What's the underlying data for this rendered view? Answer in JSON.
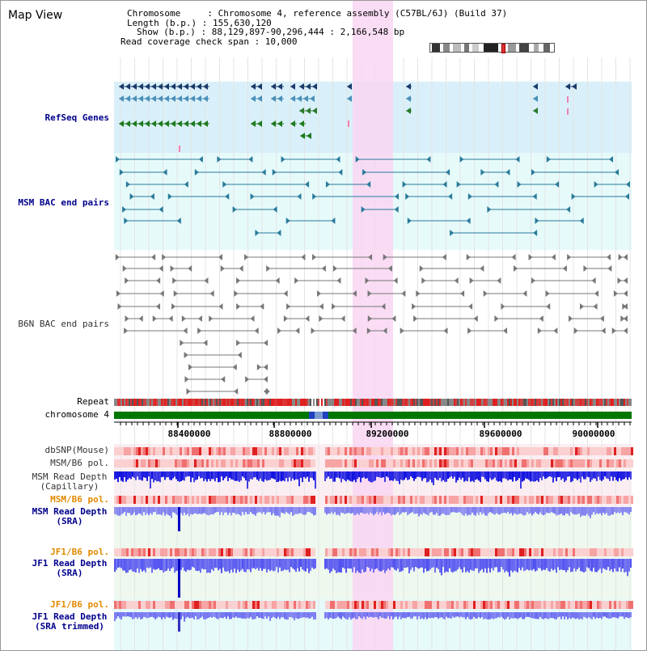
{
  "title": "Map View",
  "info": {
    "line1": "Chromosome     : Chromosome 4, reference assembly (C57BL/6J) (Build 37)",
    "line2": "Length (b.p.) : 155,630,120",
    "line3": "Show (b.p.) : 88,129,897-90,296,444 : 2,166,548 bp",
    "line4": "Read coverage check span : 10,000"
  },
  "tracks": {
    "refseq": "RefSeq Genes",
    "msm_bac": "MSM BAC end pairs",
    "b6n_bac": "B6N BAC end pairs",
    "repeat": "Repeat",
    "chromosome": "chromosome 4",
    "dbsnp": "dbSNP(Mouse)",
    "msm_b6_pol": "MSM/B6 pol.",
    "msm_depth_cap": "MSM Read Depth\n(Capillary)",
    "msm_b6_pol2": "MSM/B6 pol.",
    "msm_depth_sra": "MSM Read Depth\n(SRA)",
    "jf1_b6_pol": "JF1/B6 pol.",
    "jf1_depth_sra": "JF1 Read Depth\n(SRA)",
    "jf1_b6_pol2": "JF1/B6 pol.",
    "jf1_depth_trim": "JF1 Read Depth\n(SRA trimmed)"
  },
  "axis": {
    "ticks": [
      "88400000",
      "88800000",
      "89200000",
      "89600000",
      "90000000"
    ]
  },
  "colors": {
    "refseq_bg": "#d9f0fa",
    "bac_bg": "#e6fafa",
    "highlight": "#f9d6f2",
    "chrom_green": "#007700",
    "depth_blue": "#3030e0"
  }
}
